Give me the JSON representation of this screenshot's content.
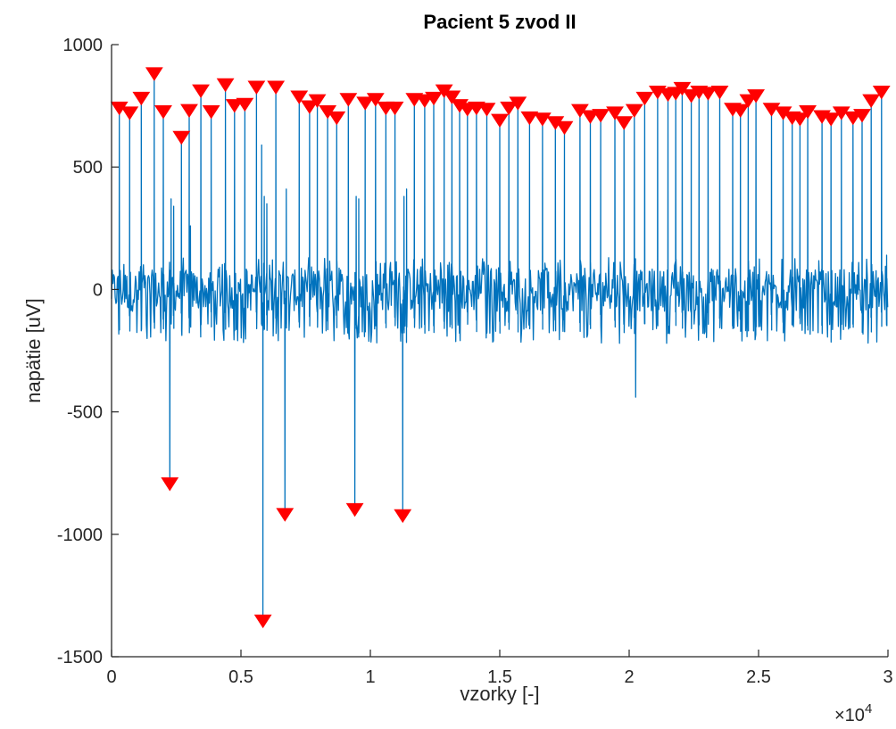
{
  "chart_data": {
    "type": "line",
    "title": "Pacient 5 zvod II",
    "xlabel": "vzorky [-]",
    "ylabel": "napätie [uV]",
    "x_exponent_label": "×10",
    "x_exponent_power": "4",
    "xlim": [
      0,
      30000
    ],
    "ylim": [
      -1500,
      1000
    ],
    "x_ticks": [
      0,
      5000,
      10000,
      15000,
      20000,
      25000,
      30000
    ],
    "x_tick_labels": [
      "0",
      "0.5",
      "1",
      "1.5",
      "2",
      "2.5",
      "3"
    ],
    "y_ticks": [
      1000,
      500,
      0,
      -500,
      -1000,
      -1500
    ],
    "y_tick_labels": [
      "1000",
      "500",
      "0",
      "-500",
      "-1000",
      "-1500"
    ],
    "grid": false,
    "series": [
      {
        "kind": "line",
        "color": "#0072BD",
        "baseline_range": [
          -220,
          130
        ],
        "beats": [
          {
            "x": 300,
            "peak": 740
          },
          {
            "x": 700,
            "peak": 720
          },
          {
            "x": 1150,
            "peak": 780
          },
          {
            "x": 1650,
            "peak": 880
          },
          {
            "x": 2000,
            "peak": 725
          },
          {
            "x": 2250,
            "peak": -795
          },
          {
            "x": 2700,
            "peak": 620
          },
          {
            "x": 3000,
            "peak": 730
          },
          {
            "x": 3450,
            "peak": 810
          },
          {
            "x": 3850,
            "peak": 725
          },
          {
            "x": 4400,
            "peak": 835
          },
          {
            "x": 4750,
            "peak": 750
          },
          {
            "x": 5150,
            "peak": 755
          },
          {
            "x": 5600,
            "peak": 825
          },
          {
            "x": 5850,
            "peak": -1355
          },
          {
            "x": 6350,
            "peak": 825
          },
          {
            "x": 6700,
            "peak": -920
          },
          {
            "x": 7250,
            "peak": 785
          },
          {
            "x": 7650,
            "peak": 745
          },
          {
            "x": 7950,
            "peak": 770
          },
          {
            "x": 8350,
            "peak": 725
          },
          {
            "x": 8700,
            "peak": 700
          },
          {
            "x": 9150,
            "peak": 775
          },
          {
            "x": 9400,
            "peak": -900
          },
          {
            "x": 9800,
            "peak": 760
          },
          {
            "x": 10200,
            "peak": 775
          },
          {
            "x": 10600,
            "peak": 740
          },
          {
            "x": 10950,
            "peak": 740
          },
          {
            "x": 11250,
            "peak": -925
          },
          {
            "x": 11700,
            "peak": 775
          },
          {
            "x": 12100,
            "peak": 770
          },
          {
            "x": 12450,
            "peak": 780
          },
          {
            "x": 12850,
            "peak": 810
          },
          {
            "x": 13150,
            "peak": 785
          },
          {
            "x": 13450,
            "peak": 750
          },
          {
            "x": 13750,
            "peak": 735
          },
          {
            "x": 14100,
            "peak": 740
          },
          {
            "x": 14500,
            "peak": 735
          },
          {
            "x": 15000,
            "peak": 690
          },
          {
            "x": 15350,
            "peak": 740
          },
          {
            "x": 15700,
            "peak": 760
          },
          {
            "x": 16150,
            "peak": 700
          },
          {
            "x": 16650,
            "peak": 695
          },
          {
            "x": 17150,
            "peak": 680
          },
          {
            "x": 17500,
            "peak": 660
          },
          {
            "x": 18100,
            "peak": 730
          },
          {
            "x": 18500,
            "peak": 705
          },
          {
            "x": 18900,
            "peak": 710
          },
          {
            "x": 19450,
            "peak": 720
          },
          {
            "x": 19800,
            "peak": 680
          },
          {
            "x": 20200,
            "peak": 730
          },
          {
            "x": 20600,
            "peak": 780
          },
          {
            "x": 21100,
            "peak": 805
          },
          {
            "x": 21500,
            "peak": 795
          },
          {
            "x": 21800,
            "peak": 800
          },
          {
            "x": 22050,
            "peak": 820
          },
          {
            "x": 22400,
            "peak": 790
          },
          {
            "x": 22700,
            "peak": 805
          },
          {
            "x": 23050,
            "peak": 800
          },
          {
            "x": 23500,
            "peak": 805
          },
          {
            "x": 24000,
            "peak": 735
          },
          {
            "x": 24300,
            "peak": 730
          },
          {
            "x": 24600,
            "peak": 770
          },
          {
            "x": 24900,
            "peak": 790
          },
          {
            "x": 25500,
            "peak": 735
          },
          {
            "x": 25950,
            "peak": 720
          },
          {
            "x": 26300,
            "peak": 700
          },
          {
            "x": 26600,
            "peak": 695
          },
          {
            "x": 26900,
            "peak": 725
          },
          {
            "x": 27450,
            "peak": 705
          },
          {
            "x": 27800,
            "peak": 695
          },
          {
            "x": 28200,
            "peak": 720
          },
          {
            "x": 28650,
            "peak": 700
          },
          {
            "x": 29000,
            "peak": 710
          },
          {
            "x": 29350,
            "peak": 770
          },
          {
            "x": 29750,
            "peak": 805
          }
        ],
        "extra_spikes": [
          {
            "x": 2300,
            "y": 370
          },
          {
            "x": 2400,
            "y": 340
          },
          {
            "x": 3050,
            "y": 260
          },
          {
            "x": 5800,
            "y": 590
          },
          {
            "x": 5900,
            "y": 380
          },
          {
            "x": 6000,
            "y": 350
          },
          {
            "x": 6750,
            "y": 410
          },
          {
            "x": 9450,
            "y": 380
          },
          {
            "x": 9550,
            "y": 370
          },
          {
            "x": 11300,
            "y": 380
          },
          {
            "x": 11400,
            "y": 410
          },
          {
            "x": 20250,
            "y": -440
          },
          {
            "x": 29950,
            "y": 140
          }
        ]
      },
      {
        "kind": "markers",
        "marker": "down-triangle",
        "color": "#FF0000",
        "source": "beats.peak"
      }
    ]
  }
}
